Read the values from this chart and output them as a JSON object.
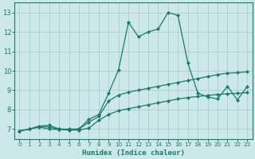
{
  "xlabel": "Humidex (Indice chaleur)",
  "bg_color": "#cce8e8",
  "grid_color": "#b0cccc",
  "line_color": "#1a7a6e",
  "xlim": [
    -0.5,
    23.5
  ],
  "ylim": [
    6.5,
    13.5
  ],
  "xticks": [
    0,
    1,
    2,
    3,
    4,
    5,
    6,
    7,
    8,
    9,
    10,
    11,
    12,
    13,
    14,
    15,
    16,
    17,
    18,
    19,
    20,
    21,
    22,
    23
  ],
  "yticks": [
    7,
    8,
    9,
    10,
    11,
    12,
    13
  ],
  "line1_x": [
    0,
    1,
    2,
    3,
    4,
    5,
    6,
    7,
    8,
    9,
    10,
    11,
    12,
    13,
    14,
    15,
    16,
    17,
    18,
    19,
    20,
    21,
    22,
    23
  ],
  "line1_y": [
    6.9,
    7.0,
    7.15,
    7.2,
    7.0,
    7.0,
    7.0,
    7.5,
    7.75,
    8.85,
    10.05,
    12.5,
    11.75,
    12.0,
    12.15,
    13.0,
    12.85,
    10.4,
    8.85,
    8.65,
    8.55,
    9.2,
    8.5,
    9.2
  ],
  "line2_x": [
    0,
    1,
    2,
    3,
    4,
    5,
    6,
    7,
    8,
    9,
    10,
    11,
    12,
    13,
    14,
    15,
    16,
    17,
    18,
    19,
    20,
    21,
    22,
    23
  ],
  "line2_y": [
    6.9,
    7.0,
    7.15,
    7.1,
    7.0,
    6.98,
    7.0,
    7.35,
    7.65,
    8.45,
    8.75,
    8.9,
    9.0,
    9.1,
    9.2,
    9.3,
    9.4,
    9.5,
    9.6,
    9.7,
    9.8,
    9.88,
    9.9,
    9.95
  ],
  "line3_x": [
    0,
    1,
    2,
    3,
    4,
    5,
    6,
    7,
    8,
    9,
    10,
    11,
    12,
    13,
    14,
    15,
    16,
    17,
    18,
    19,
    20,
    21,
    22,
    23
  ],
  "line3_y": [
    6.9,
    7.0,
    7.1,
    7.0,
    6.98,
    6.95,
    6.95,
    7.05,
    7.45,
    7.75,
    7.95,
    8.05,
    8.15,
    8.25,
    8.35,
    8.45,
    8.55,
    8.62,
    8.68,
    8.73,
    8.78,
    8.82,
    8.84,
    8.88
  ]
}
